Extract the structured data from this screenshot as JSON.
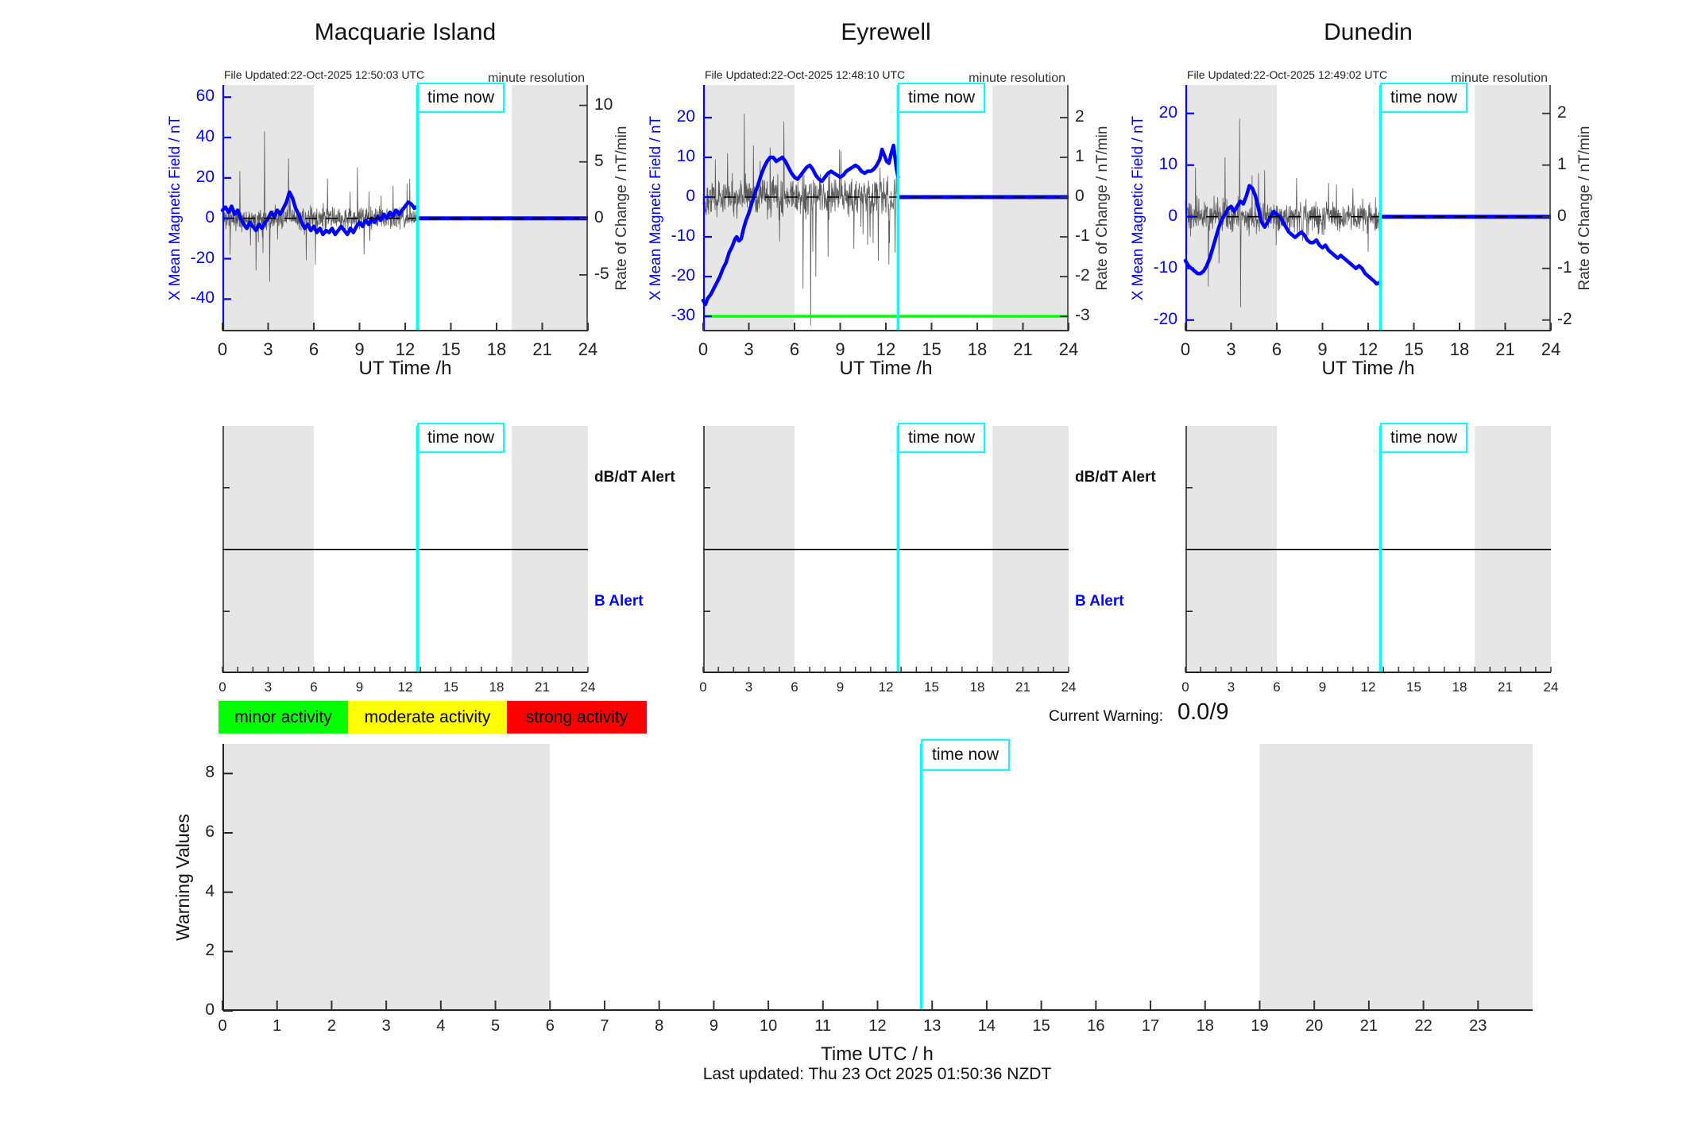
{
  "colors": {
    "band": "#e6e6e6",
    "blue": "#0000ff",
    "cyan": "#00ffff",
    "noise": "#5a5a5a",
    "green": "#00ff00",
    "axis_dark": "#333333"
  },
  "chart_data": [
    {
      "type": "line",
      "title": "Macquarie Island",
      "file_updated": "File Updated:22-Oct-2025 12:50:03 UTC",
      "resolution_note": "minute resolution",
      "x": {
        "label": "UT Time /h",
        "ticks": [
          0,
          3,
          6,
          9,
          12,
          15,
          18,
          21,
          24
        ],
        "range": [
          0,
          24
        ]
      },
      "left_axis": {
        "label": "X Mean Magnetic Field / nT",
        "ticks": [
          60,
          40,
          20,
          0,
          -20,
          -40
        ],
        "range": [
          -56,
          66
        ]
      },
      "right_axis": {
        "label": "Rate of Change / nT/min",
        "ticks": [
          10,
          5,
          0,
          -5
        ],
        "range": [
          -10.0,
          11.8
        ]
      },
      "night_bands": [
        [
          0,
          6
        ],
        [
          19,
          24
        ]
      ],
      "time_now": {
        "t": 12.8,
        "label": "time now"
      },
      "post_now_rate": 0,
      "field_series": [
        [
          0,
          4
        ],
        [
          0.2,
          5.5
        ],
        [
          0.4,
          3
        ],
        [
          0.6,
          6
        ],
        [
          0.8,
          2
        ],
        [
          1,
          4
        ],
        [
          1.2,
          0
        ],
        [
          1.4,
          -3
        ],
        [
          1.6,
          -5
        ],
        [
          1.8,
          -2
        ],
        [
          2,
          -4
        ],
        [
          2.2,
          -6
        ],
        [
          2.4,
          -3
        ],
        [
          2.6,
          -5
        ],
        [
          2.8,
          -2
        ],
        [
          3,
          0
        ],
        [
          3.2,
          3
        ],
        [
          3.4,
          1
        ],
        [
          3.6,
          4
        ],
        [
          3.8,
          2
        ],
        [
          4,
          5
        ],
        [
          4.2,
          8
        ],
        [
          4.4,
          13
        ],
        [
          4.6,
          10
        ],
        [
          4.8,
          5
        ],
        [
          5,
          2
        ],
        [
          5.2,
          -2
        ],
        [
          5.4,
          -5
        ],
        [
          5.6,
          -3
        ],
        [
          5.8,
          -6
        ],
        [
          6,
          -4
        ],
        [
          6.2,
          -7
        ],
        [
          6.4,
          -5
        ],
        [
          6.6,
          -8
        ],
        [
          6.8,
          -6
        ],
        [
          7,
          -7
        ],
        [
          7.2,
          -5
        ],
        [
          7.4,
          -8
        ],
        [
          7.6,
          -6
        ],
        [
          7.8,
          -4
        ],
        [
          8,
          -6
        ],
        [
          8.2,
          -8
        ],
        [
          8.4,
          -5
        ],
        [
          8.6,
          -7
        ],
        [
          8.8,
          -4
        ],
        [
          9,
          -2
        ],
        [
          9.2,
          -4
        ],
        [
          9.4,
          -1
        ],
        [
          9.6,
          -3
        ],
        [
          9.8,
          0
        ],
        [
          10,
          -2
        ],
        [
          10.2,
          1
        ],
        [
          10.4,
          -1
        ],
        [
          10.6,
          2
        ],
        [
          10.8,
          0
        ],
        [
          11,
          3
        ],
        [
          11.2,
          1
        ],
        [
          11.4,
          4
        ],
        [
          11.6,
          2
        ],
        [
          11.8,
          4
        ],
        [
          12,
          6
        ],
        [
          12.2,
          8
        ],
        [
          12.4,
          7
        ],
        [
          12.6,
          5
        ],
        [
          12.8,
          6
        ]
      ],
      "rate_noise": {
        "seed": 11,
        "amplitude": 1.05,
        "spikes": [
          [
            0.5,
            -3.2
          ],
          [
            1.15,
            4.2
          ],
          [
            2.2,
            -4.6
          ],
          [
            2.75,
            7.7
          ],
          [
            3.1,
            -5.6
          ],
          [
            4.35,
            5.3
          ],
          [
            5.5,
            -3.7
          ],
          [
            6.1,
            -4.1
          ],
          [
            6.9,
            3.5
          ],
          [
            8.85,
            4.5
          ],
          [
            9.3,
            -3.2
          ],
          [
            11.2,
            2.9
          ],
          [
            12.3,
            3.5
          ]
        ]
      }
    },
    {
      "type": "line",
      "title": "Eyrewell",
      "file_updated": "File Updated:22-Oct-2025 12:48:10 UTC",
      "resolution_note": "minute resolution",
      "x": {
        "label": "UT Time /h",
        "ticks": [
          0,
          3,
          6,
          9,
          12,
          15,
          18,
          21,
          24
        ],
        "range": [
          0,
          24
        ]
      },
      "left_axis": {
        "label": "X Mean Magnetic Field / nT",
        "ticks": [
          20,
          10,
          0,
          -10,
          -20,
          -30
        ],
        "range": [
          -33.8,
          28.2
        ]
      },
      "right_axis": {
        "label": "Rate of Change / nT/min",
        "ticks": [
          2,
          1,
          0,
          -1,
          -2,
          -3
        ],
        "range": [
          -3.38,
          2.82
        ]
      },
      "night_bands": [
        [
          0,
          6
        ],
        [
          19,
          24
        ]
      ],
      "time_now": {
        "t": 12.8,
        "label": "time now"
      },
      "post_now_rate": 0,
      "threshold_line": {
        "value": -30,
        "color": "#00ff00"
      },
      "field_series": [
        [
          0,
          -26
        ],
        [
          0.15,
          -27
        ],
        [
          0.3,
          -25.5
        ],
        [
          0.5,
          -24.5
        ],
        [
          0.7,
          -23
        ],
        [
          0.9,
          -21.5
        ],
        [
          1.1,
          -20
        ],
        [
          1.3,
          -18
        ],
        [
          1.5,
          -16.5
        ],
        [
          1.7,
          -14
        ],
        [
          1.9,
          -12.5
        ],
        [
          2,
          -11.5
        ],
        [
          2.1,
          -10.5
        ],
        [
          2.2,
          -10
        ],
        [
          2.35,
          -11
        ],
        [
          2.5,
          -10.5
        ],
        [
          2.65,
          -8
        ],
        [
          2.8,
          -6
        ],
        [
          3,
          -4
        ],
        [
          3.2,
          -1.5
        ],
        [
          3.4,
          1
        ],
        [
          3.6,
          3
        ],
        [
          3.8,
          5.5
        ],
        [
          4,
          7.5
        ],
        [
          4.2,
          9
        ],
        [
          4.4,
          10
        ],
        [
          4.6,
          10
        ],
        [
          4.8,
          9
        ],
        [
          5,
          9.5
        ],
        [
          5.2,
          10
        ],
        [
          5.4,
          9
        ],
        [
          5.6,
          7.5
        ],
        [
          5.8,
          6
        ],
        [
          6,
          5
        ],
        [
          6.2,
          4.5
        ],
        [
          6.4,
          5.5
        ],
        [
          6.6,
          6.5
        ],
        [
          6.8,
          7.5
        ],
        [
          7,
          8
        ],
        [
          7.2,
          7
        ],
        [
          7.4,
          5.5
        ],
        [
          7.6,
          4.5
        ],
        [
          7.8,
          4
        ],
        [
          8,
          5
        ],
        [
          8.2,
          6
        ],
        [
          8.4,
          6.5
        ],
        [
          8.6,
          6
        ],
        [
          8.8,
          5.5
        ],
        [
          9,
          5
        ],
        [
          9.2,
          5.5
        ],
        [
          9.4,
          6.5
        ],
        [
          9.6,
          7
        ],
        [
          9.8,
          7.5
        ],
        [
          10,
          8
        ],
        [
          10.2,
          7.5
        ],
        [
          10.4,
          6.5
        ],
        [
          10.6,
          6
        ],
        [
          10.8,
          6.5
        ],
        [
          11,
          6.5
        ],
        [
          11.2,
          7
        ],
        [
          11.4,
          8
        ],
        [
          11.6,
          9.5
        ],
        [
          11.75,
          12
        ],
        [
          11.9,
          10.5
        ],
        [
          12.05,
          9
        ],
        [
          12.2,
          8.5
        ],
        [
          12.35,
          11
        ],
        [
          12.5,
          13
        ],
        [
          12.6,
          10
        ],
        [
          12.7,
          7
        ],
        [
          12.8,
          5
        ]
      ],
      "rate_noise": {
        "seed": 22,
        "amplitude": 0.5,
        "spikes": [
          [
            0.8,
            0.95
          ],
          [
            1.6,
            1.1
          ],
          [
            2.7,
            2.1
          ],
          [
            3.3,
            1.3
          ],
          [
            4.4,
            1.25
          ],
          [
            5.3,
            1.9
          ],
          [
            6.55,
            -2.3
          ],
          [
            7.05,
            -3.3
          ],
          [
            7.4,
            -2.0
          ],
          [
            8.2,
            -1.5
          ],
          [
            9.9,
            -1.3
          ],
          [
            10.8,
            -1.2
          ],
          [
            11.5,
            -1.6
          ],
          [
            12.2,
            -1.7
          ],
          [
            12.6,
            -1.4
          ]
        ]
      }
    },
    {
      "type": "line",
      "title": "Dunedin",
      "file_updated": "File Updated:22-Oct-2025 12:49:02 UTC",
      "resolution_note": "minute resolution",
      "x": {
        "label": "UT Time /h",
        "ticks": [
          0,
          3,
          6,
          9,
          12,
          15,
          18,
          21,
          24
        ],
        "range": [
          0,
          24
        ]
      },
      "left_axis": {
        "label": "X Mean Magnetic Field / nT",
        "ticks": [
          20,
          10,
          0,
          -10,
          -20
        ],
        "range": [
          -22.2,
          25.5
        ]
      },
      "right_axis": {
        "label": "Rate of Change / nT/min",
        "ticks": [
          2,
          1,
          0,
          -1,
          -2
        ],
        "range": [
          -2.22,
          2.55
        ]
      },
      "night_bands": [
        [
          0,
          6
        ],
        [
          19,
          24
        ]
      ],
      "time_now": {
        "t": 12.8,
        "label": "time now"
      },
      "post_now_rate": 0,
      "field_series": [
        [
          0,
          -8.5
        ],
        [
          0.2,
          -9.5
        ],
        [
          0.4,
          -10
        ],
        [
          0.6,
          -10.5
        ],
        [
          0.8,
          -11
        ],
        [
          1,
          -11
        ],
        [
          1.2,
          -10.5
        ],
        [
          1.4,
          -9.5
        ],
        [
          1.6,
          -8
        ],
        [
          1.8,
          -6
        ],
        [
          2,
          -4
        ],
        [
          2.2,
          -2
        ],
        [
          2.4,
          -0.5
        ],
        [
          2.6,
          0.5
        ],
        [
          2.8,
          1.5
        ],
        [
          3,
          2
        ],
        [
          3.2,
          1
        ],
        [
          3.4,
          2
        ],
        [
          3.6,
          3
        ],
        [
          3.8,
          2.5
        ],
        [
          4,
          4
        ],
        [
          4.2,
          6
        ],
        [
          4.4,
          5.5
        ],
        [
          4.6,
          4
        ],
        [
          4.8,
          1.5
        ],
        [
          5,
          -1
        ],
        [
          5.2,
          -2
        ],
        [
          5.4,
          -1
        ],
        [
          5.6,
          0
        ],
        [
          5.8,
          1
        ],
        [
          6,
          0.5
        ],
        [
          6.2,
          0
        ],
        [
          6.4,
          -1
        ],
        [
          6.6,
          -2
        ],
        [
          6.8,
          -3
        ],
        [
          7,
          -3.5
        ],
        [
          7.2,
          -4
        ],
        [
          7.4,
          -3.5
        ],
        [
          7.6,
          -3
        ],
        [
          7.8,
          -3.5
        ],
        [
          8,
          -4.5
        ],
        [
          8.2,
          -5
        ],
        [
          8.4,
          -5
        ],
        [
          8.6,
          -4.5
        ],
        [
          8.8,
          -5.5
        ],
        [
          9,
          -6
        ],
        [
          9.2,
          -5.5
        ],
        [
          9.4,
          -6.5
        ],
        [
          9.6,
          -7
        ],
        [
          9.8,
          -7.5
        ],
        [
          10,
          -8
        ],
        [
          10.2,
          -7.5
        ],
        [
          10.4,
          -8
        ],
        [
          10.6,
          -8.5
        ],
        [
          10.8,
          -9
        ],
        [
          11,
          -9.5
        ],
        [
          11.2,
          -10
        ],
        [
          11.4,
          -9.5
        ],
        [
          11.6,
          -10
        ],
        [
          11.8,
          -11
        ],
        [
          12,
          -11.5
        ],
        [
          12.2,
          -12
        ],
        [
          12.4,
          -12.5
        ],
        [
          12.55,
          -13
        ],
        [
          12.7,
          -12.8
        ],
        [
          12.8,
          -13
        ]
      ],
      "rate_noise": {
        "seed": 33,
        "amplitude": 0.33,
        "spikes": [
          [
            0.65,
            0.95
          ],
          [
            1.5,
            -1.35
          ],
          [
            2.2,
            -0.9
          ],
          [
            2.6,
            1.15
          ],
          [
            3.55,
            1.9
          ],
          [
            3.62,
            -1.75
          ],
          [
            4.8,
            0.85
          ],
          [
            5.2,
            0.9
          ],
          [
            7.3,
            0.75
          ],
          [
            9.4,
            0.65
          ],
          [
            11,
            0.55
          ]
        ]
      }
    },
    {
      "type": "line",
      "title": "Warning Values",
      "ylabel": "Warning Values",
      "xlabel": "Time UTC / h",
      "yticks": [
        0,
        2,
        4,
        6,
        8
      ],
      "ylim": [
        0,
        9
      ],
      "xticks": [
        0,
        1,
        2,
        3,
        4,
        5,
        6,
        7,
        8,
        9,
        10,
        11,
        12,
        13,
        14,
        15,
        16,
        17,
        18,
        19,
        20,
        21,
        22,
        23
      ],
      "xlim": [
        0,
        24
      ],
      "night_bands": [
        [
          0,
          6
        ],
        [
          19,
          24
        ]
      ],
      "time_now": {
        "t": 12.8,
        "label": "time now"
      },
      "values": []
    }
  ],
  "alerts": {
    "x_ticks": [
      0,
      3,
      6,
      9,
      12,
      15,
      18,
      21,
      24
    ],
    "dbdt_label": "dB/dT Alert",
    "b_label": "B Alert",
    "b_label_color": "#0000ff",
    "time_now_label": "time now",
    "panels": [
      {
        "station": "Macquarie Island",
        "show_labels": true
      },
      {
        "station": "Eyrewell",
        "show_labels": true
      },
      {
        "station": "Dunedin",
        "show_labels": false
      }
    ]
  },
  "legend": {
    "items": [
      {
        "label": "minor activity",
        "color": "#00ff00"
      },
      {
        "label": "moderate activity",
        "color": "#ffff00"
      },
      {
        "label": "strong activity",
        "color": "#ff0000"
      }
    ]
  },
  "current_warning": {
    "label": "Current Warning:",
    "value": "0.0/9"
  },
  "footer": {
    "last_updated": "Last updated: Thu 23 Oct 2025 01:50:36 NZDT"
  }
}
